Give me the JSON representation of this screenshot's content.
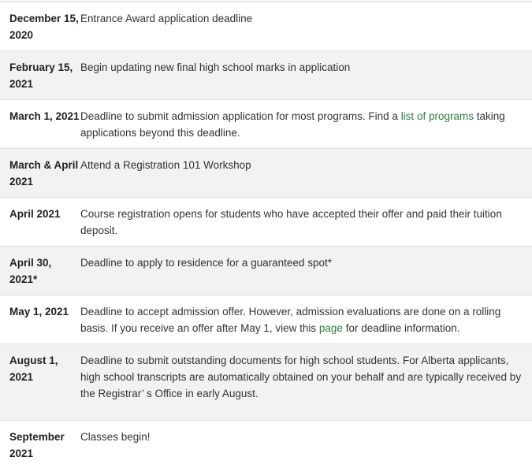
{
  "link_color": "#2e7d3e",
  "rows": [
    {
      "date": "December 15, 2020",
      "desc": [
        "Entrance Award application deadline"
      ]
    },
    {
      "date": "February 15, 2021",
      "desc": [
        "Begin updating new final high school marks in application"
      ]
    },
    {
      "date": "March 1, 2021",
      "desc": [
        "Deadline to submit admission application for most programs. Find a ",
        "list of programs",
        " taking applications beyond this deadline."
      ]
    },
    {
      "date": "March & April 2021",
      "desc": [
        "Attend a Registration 101 Workshop"
      ]
    },
    {
      "date": "April 2021",
      "desc": [
        "Course registration opens for students who have accepted their offer and paid their tuition deposit."
      ]
    },
    {
      "date": "April 30, 2021*",
      "desc": [
        "Deadline to apply to residence for a guaranteed spot*"
      ]
    },
    {
      "date": "May 1, 2021",
      "desc": [
        "Deadline to accept admission offer. However, admission evaluations are done on a rolling basis. If you receive an offer after May 1, view this ",
        "page",
        " for deadline information."
      ]
    },
    {
      "date": "August 1, 2021",
      "desc": [
        "Deadline to submit outstanding documents for high school students. For Alberta applicants, high school transcripts are automatically obtained on your behalf and are typically received by the Registrar’ s Office in early August."
      ]
    },
    {
      "date": "September 2021",
      "desc": [
        "Classes begin!"
      ]
    }
  ]
}
